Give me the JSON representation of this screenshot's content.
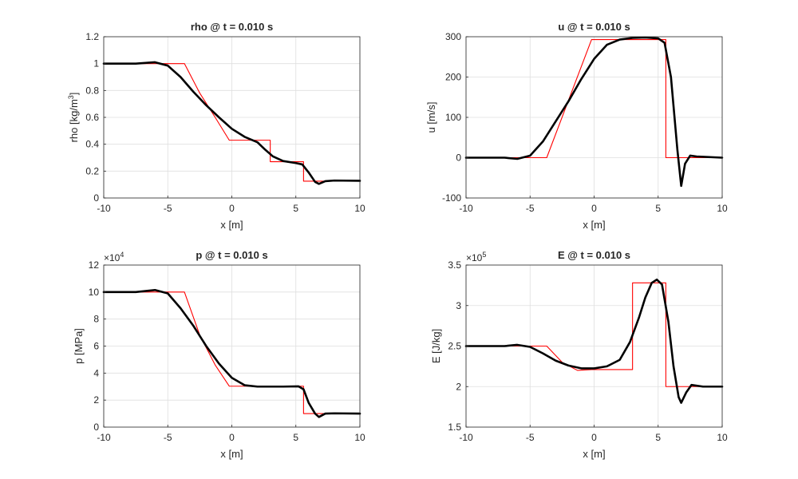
{
  "figure": {
    "background": "#ffffff",
    "colors": {
      "numerical": "#000000",
      "exact": "#ff0000",
      "grid": "#dfdfdf",
      "axis": "#262626"
    }
  },
  "chart_data": [
    {
      "type": "line",
      "title": "rho @ t = 0.010 s",
      "xlabel": "x [m]",
      "ylabel": "rho [kg/m",
      "ylabel_sup": "3",
      "ylabel_suffix": "]",
      "xlim": [
        -10,
        10
      ],
      "ylim": [
        0,
        1.2
      ],
      "xticks": [
        "-10",
        "-5",
        "0",
        "5",
        "10"
      ],
      "yticks": [
        "0",
        "0.2",
        "0.4",
        "0.6",
        "0.8",
        "1",
        "1.2"
      ],
      "yticks_values": [
        0,
        0.2,
        0.4,
        0.6,
        0.8,
        1,
        1.2
      ],
      "grid": true,
      "series": [
        {
          "role": "numerical",
          "points": [
            [
              -10,
              1
            ],
            [
              -7.5,
              1
            ],
            [
              -6,
              1.01
            ],
            [
              -5,
              0.985
            ],
            [
              -4,
              0.9
            ],
            [
              -3,
              0.79
            ],
            [
              -2,
              0.69
            ],
            [
              -1,
              0.6
            ],
            [
              0,
              0.515
            ],
            [
              1,
              0.455
            ],
            [
              2,
              0.415
            ],
            [
              2.6,
              0.36
            ],
            [
              3.2,
              0.31
            ],
            [
              4,
              0.275
            ],
            [
              5,
              0.26
            ],
            [
              5.5,
              0.25
            ],
            [
              6,
              0.19
            ],
            [
              6.5,
              0.12
            ],
            [
              6.8,
              0.105
            ],
            [
              7.3,
              0.125
            ],
            [
              8,
              0.13
            ],
            [
              10,
              0.128
            ]
          ]
        },
        {
          "role": "exact",
          "points": [
            [
              -10,
              1
            ],
            [
              -3.7,
              1
            ],
            [
              -2.5,
              0.78
            ],
            [
              -1.3,
              0.6
            ],
            [
              -0.2,
              0.43
            ],
            [
              3,
              0.43
            ],
            [
              3,
              0.27
            ],
            [
              5.6,
              0.27
            ],
            [
              5.6,
              0.125
            ],
            [
              10,
              0.125
            ]
          ]
        }
      ]
    },
    {
      "type": "line",
      "title": "u @ t = 0.010 s",
      "xlabel": "x [m]",
      "ylabel": "u [m/s]",
      "xlim": [
        -10,
        10
      ],
      "ylim": [
        -100,
        300
      ],
      "xticks": [
        "-10",
        "-5",
        "0",
        "5",
        "10"
      ],
      "yticks": [
        "-100",
        "0",
        "100",
        "200",
        "300"
      ],
      "yticks_values": [
        -100,
        0,
        100,
        200,
        300
      ],
      "grid": true,
      "series": [
        {
          "role": "numerical",
          "points": [
            [
              -10,
              0
            ],
            [
              -7,
              0
            ],
            [
              -6,
              -3
            ],
            [
              -5,
              5
            ],
            [
              -4,
              40
            ],
            [
              -3,
              90
            ],
            [
              -2,
              140
            ],
            [
              -1,
              195
            ],
            [
              0,
              245
            ],
            [
              1,
              280
            ],
            [
              2,
              293
            ],
            [
              3,
              297
            ],
            [
              4,
              298
            ],
            [
              5,
              296
            ],
            [
              5.5,
              285
            ],
            [
              6,
              200
            ],
            [
              6.5,
              20
            ],
            [
              6.8,
              -70
            ],
            [
              7.1,
              -15
            ],
            [
              7.5,
              5
            ],
            [
              8,
              3
            ],
            [
              10,
              0
            ]
          ]
        },
        {
          "role": "exact",
          "points": [
            [
              -10,
              0
            ],
            [
              -3.7,
              0
            ],
            [
              -0.2,
              293
            ],
            [
              5.6,
              293
            ],
            [
              5.6,
              0
            ],
            [
              10,
              0
            ]
          ]
        }
      ]
    },
    {
      "type": "line",
      "title": "p @ t = 0.010 s",
      "xlabel": "x [m]",
      "ylabel": "p [MPa]",
      "yexponent_base": "×10",
      "yexponent": "4",
      "xlim": [
        -10,
        10
      ],
      "ylim": [
        0,
        12
      ],
      "xticks": [
        "-10",
        "-5",
        "0",
        "5",
        "10"
      ],
      "yticks": [
        "0",
        "2",
        "4",
        "6",
        "8",
        "10",
        "12"
      ],
      "yticks_values": [
        0,
        2,
        4,
        6,
        8,
        10,
        12
      ],
      "grid": true,
      "series": [
        {
          "role": "numerical",
          "points": [
            [
              -10,
              10
            ],
            [
              -7.5,
              10
            ],
            [
              -6,
              10.15
            ],
            [
              -5,
              9.9
            ],
            [
              -4,
              8.8
            ],
            [
              -3,
              7.5
            ],
            [
              -2,
              6
            ],
            [
              -1,
              4.7
            ],
            [
              0,
              3.65
            ],
            [
              1,
              3.1
            ],
            [
              2,
              3
            ],
            [
              4,
              3
            ],
            [
              5.2,
              3.02
            ],
            [
              5.6,
              2.8
            ],
            [
              6,
              1.8
            ],
            [
              6.5,
              1.0
            ],
            [
              6.8,
              0.75
            ],
            [
              7.3,
              1.0
            ],
            [
              8,
              1.02
            ],
            [
              10,
              1
            ]
          ]
        },
        {
          "role": "exact",
          "points": [
            [
              -10,
              10
            ],
            [
              -3.7,
              10
            ],
            [
              -2.5,
              6.8
            ],
            [
              -1.3,
              4.6
            ],
            [
              -0.2,
              3.03
            ],
            [
              5.6,
              3.03
            ],
            [
              5.6,
              1
            ],
            [
              10,
              1
            ]
          ]
        }
      ]
    },
    {
      "type": "line",
      "title": "E @ t = 0.010 s",
      "xlabel": "x [m]",
      "ylabel": "E [J/kg]",
      "yexponent_base": "×10",
      "yexponent": "5",
      "xlim": [
        -10,
        10
      ],
      "ylim": [
        1.5,
        3.5
      ],
      "xticks": [
        "-10",
        "-5",
        "0",
        "5",
        "10"
      ],
      "yticks": [
        "1.5",
        "2",
        "2.5",
        "3",
        "3.5"
      ],
      "yticks_values": [
        1.5,
        2,
        2.5,
        3,
        3.5
      ],
      "grid": true,
      "series": [
        {
          "role": "numerical",
          "points": [
            [
              -10,
              2.5
            ],
            [
              -7,
              2.5
            ],
            [
              -6,
              2.515
            ],
            [
              -5,
              2.49
            ],
            [
              -4,
              2.41
            ],
            [
              -3,
              2.32
            ],
            [
              -2,
              2.26
            ],
            [
              -1,
              2.225
            ],
            [
              0,
              2.225
            ],
            [
              1,
              2.25
            ],
            [
              2,
              2.33
            ],
            [
              2.8,
              2.55
            ],
            [
              3.5,
              2.85
            ],
            [
              4,
              3.1
            ],
            [
              4.5,
              3.28
            ],
            [
              4.9,
              3.32
            ],
            [
              5.3,
              3.26
            ],
            [
              5.8,
              2.8
            ],
            [
              6.2,
              2.25
            ],
            [
              6.6,
              1.87
            ],
            [
              6.8,
              1.8
            ],
            [
              7.2,
              1.93
            ],
            [
              7.6,
              2.02
            ],
            [
              8.5,
              2.0
            ],
            [
              10,
              2.0
            ]
          ]
        },
        {
          "role": "exact",
          "points": [
            [
              -10,
              2.5
            ],
            [
              -3.7,
              2.5
            ],
            [
              -2.5,
              2.3
            ],
            [
              -1.3,
              2.2
            ],
            [
              -0.2,
              2.21
            ],
            [
              3,
              2.21
            ],
            [
              3,
              3.28
            ],
            [
              5.6,
              3.28
            ],
            [
              5.6,
              2.0
            ],
            [
              10,
              2.0
            ]
          ]
        }
      ]
    }
  ]
}
